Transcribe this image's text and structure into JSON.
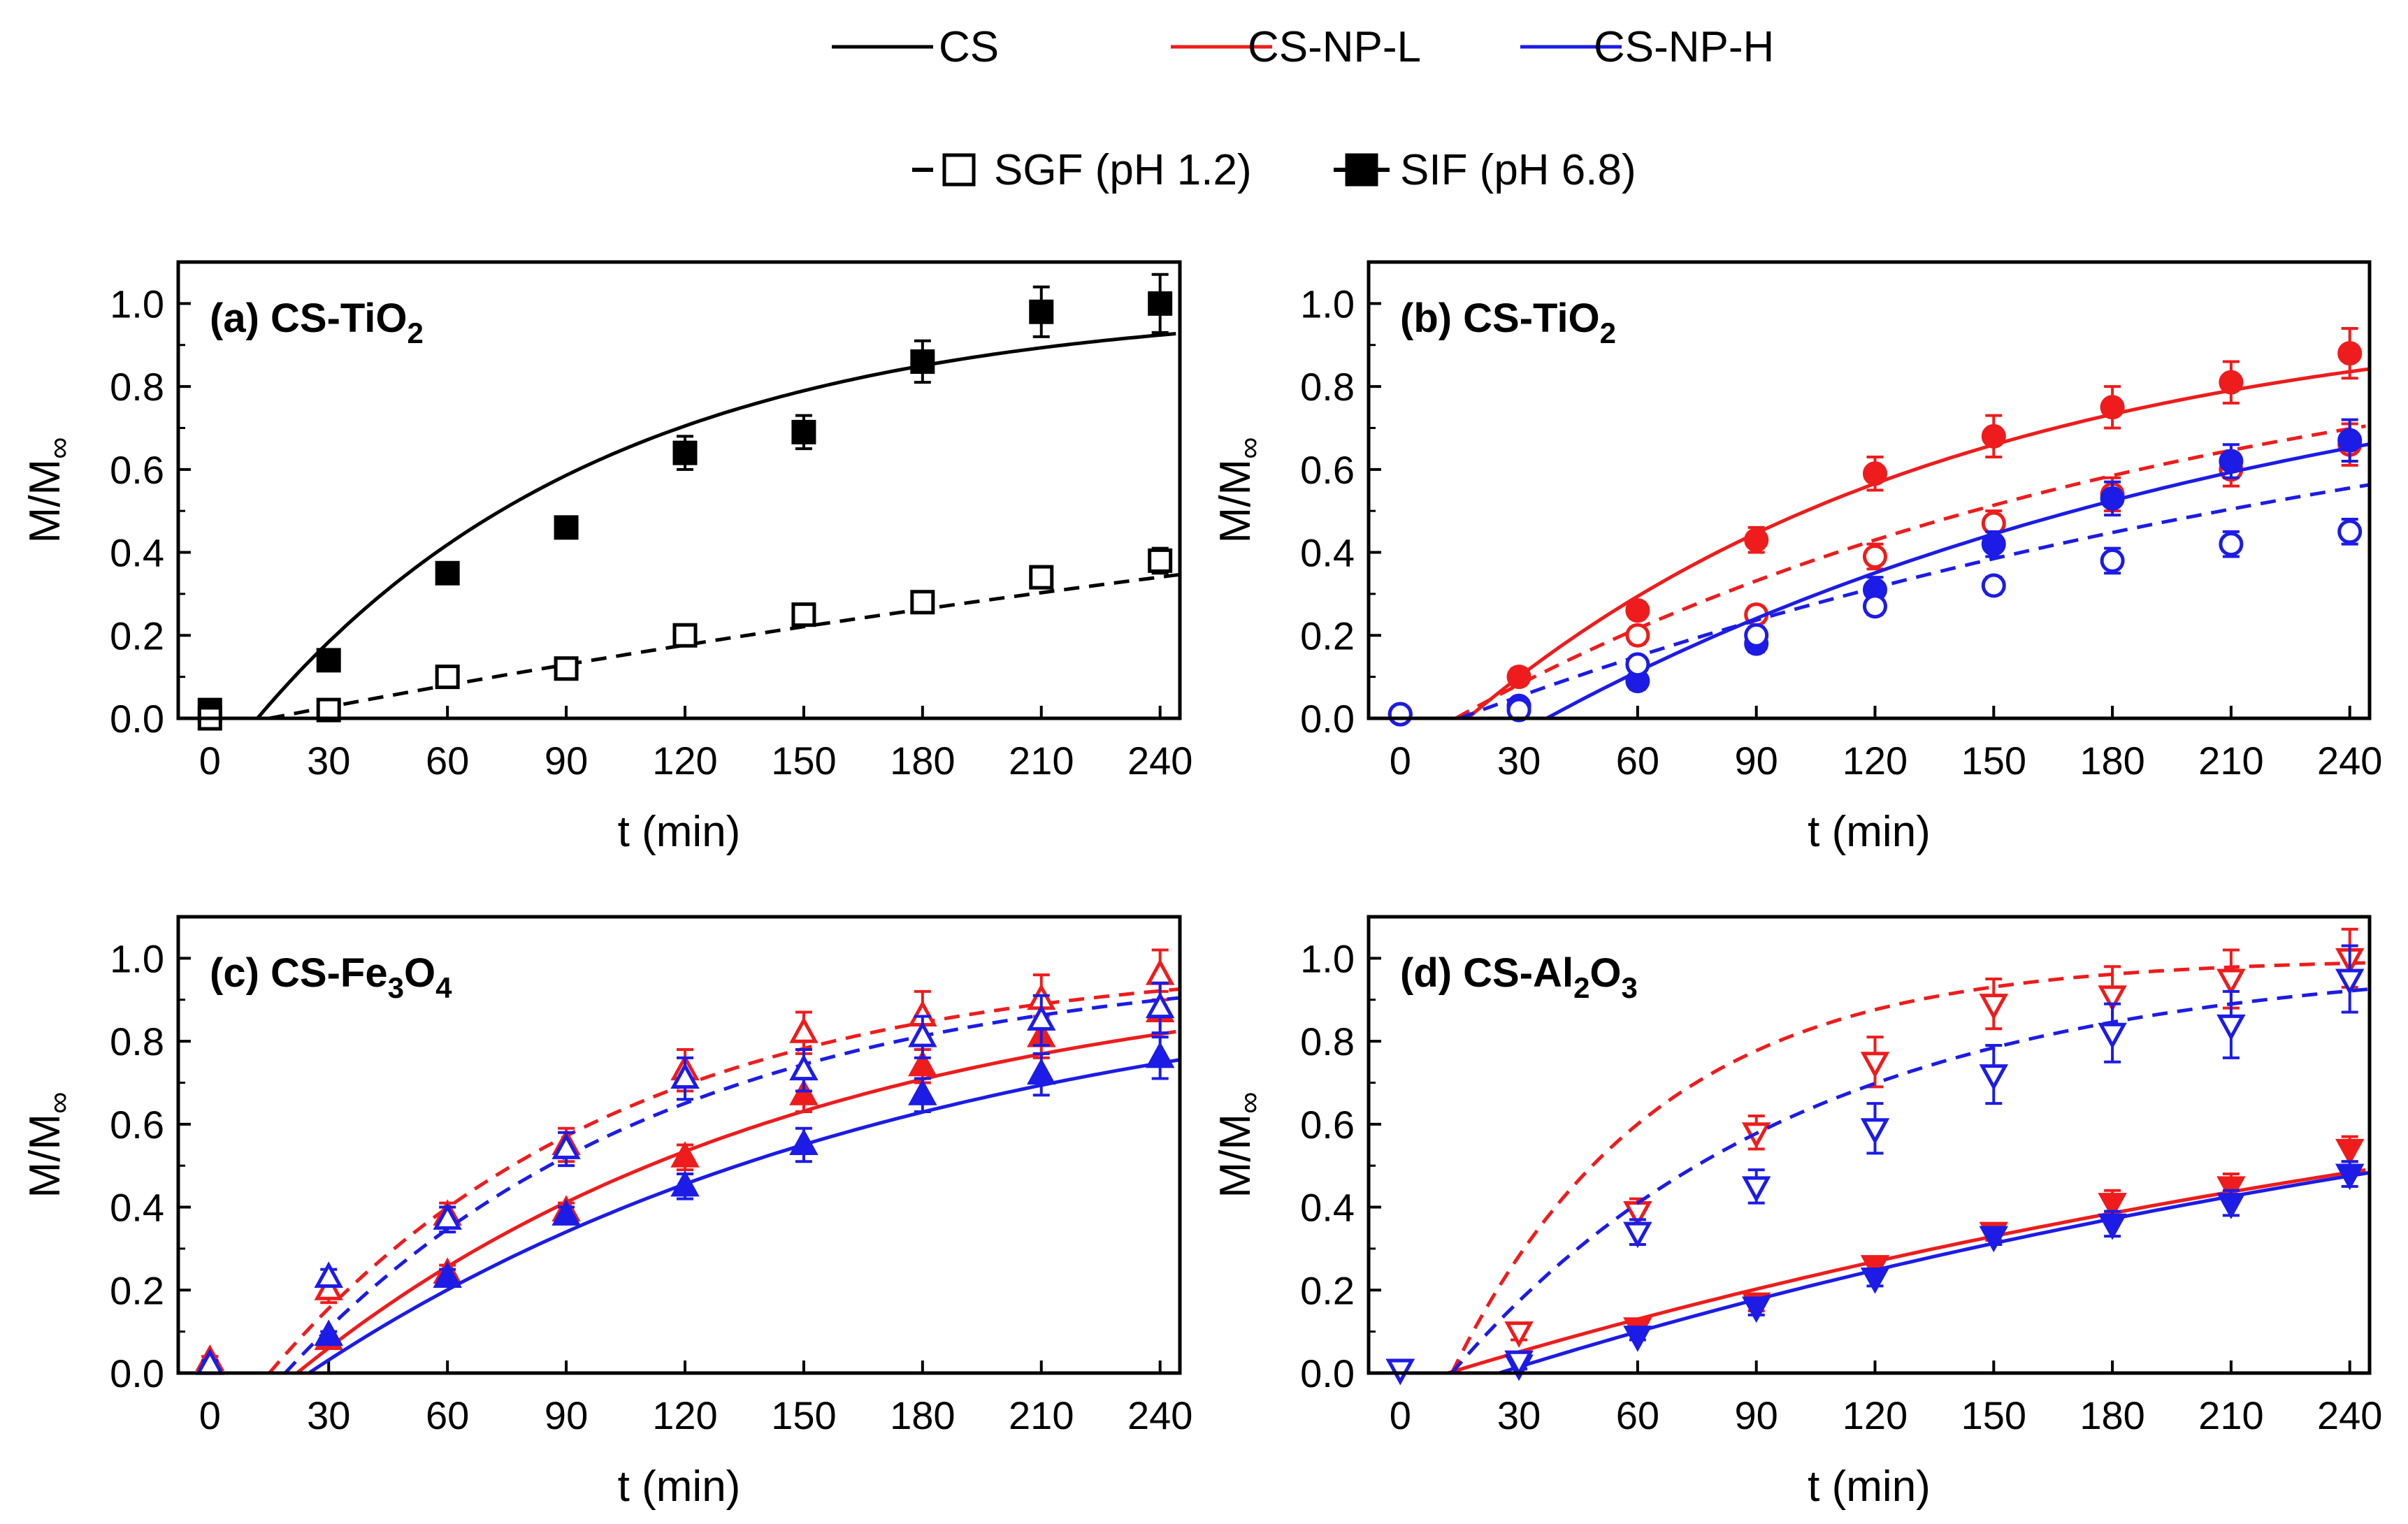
{
  "legend": {
    "materials": [
      {
        "label": "CS",
        "color": "#000000"
      },
      {
        "label": "CS-NP-L",
        "color": "#ee1c1c"
      },
      {
        "label": "CS-NP-H",
        "color": "#1c1ce6"
      }
    ],
    "media": [
      {
        "label": "SGF (pH 1.2)",
        "style": "dashed-open-square"
      },
      {
        "label": "SIF (pH 6.8)",
        "style": "solid-filled-square"
      }
    ]
  },
  "chart_data": [
    {
      "id": "a",
      "type": "scatter",
      "title": "(a) CS-TiO",
      "title_sub": "2",
      "xlabel": "t (min)",
      "ylabel_main": "M/M",
      "ylabel_sub": "∞",
      "xlim": [
        -8,
        245
      ],
      "ylim": [
        0,
        1.1
      ],
      "xticks": [
        0,
        30,
        60,
        90,
        120,
        150,
        180,
        210,
        240
      ],
      "yticks": [
        0.0,
        0.2,
        0.4,
        0.6,
        0.8,
        1.0
      ],
      "ytick_labels": [
        "0.0",
        "0.2",
        "0.4",
        "0.6",
        "0.8",
        "1.0"
      ],
      "x": [
        0,
        30,
        60,
        90,
        120,
        150,
        180,
        210,
        240
      ],
      "series": [
        {
          "name": "CS SIF (pH 6.8)",
          "color": "#000000",
          "marker": "square",
          "filled": true,
          "dashed": false,
          "values": [
            0.02,
            0.14,
            0.35,
            0.46,
            0.64,
            0.69,
            0.86,
            0.98,
            1.0
          ],
          "errors": [
            0.01,
            0.02,
            0.02,
            0.02,
            0.04,
            0.04,
            0.05,
            0.06,
            0.07
          ],
          "fit": {
            "k": 0.0113,
            "t0": 12
          }
        },
        {
          "name": "CS SGF (pH 1.2)",
          "color": "#000000",
          "marker": "square",
          "filled": false,
          "dashed": true,
          "values": [
            0.0,
            0.02,
            0.1,
            0.12,
            0.2,
            0.25,
            0.28,
            0.34,
            0.38
          ],
          "errors": [
            0.01,
            0.01,
            0.01,
            0.01,
            0.01,
            0.01,
            0.02,
            0.02,
            0.03
          ],
          "fit": {
            "k": 0.00185,
            "t0": 15
          }
        }
      ]
    },
    {
      "id": "b",
      "type": "scatter",
      "title": "(b) CS-TiO",
      "title_sub": "2",
      "xlabel": "t (min)",
      "ylabel_main": "M/M",
      "ylabel_sub": "∞",
      "xlim": [
        -8,
        245
      ],
      "ylim": [
        0,
        1.1
      ],
      "xticks": [
        0,
        30,
        60,
        90,
        120,
        150,
        180,
        210,
        240
      ],
      "yticks": [
        0.0,
        0.2,
        0.4,
        0.6,
        0.8,
        1.0
      ],
      "ytick_labels": [
        "0.0",
        "0.2",
        "0.4",
        "0.6",
        "0.8",
        "1.0"
      ],
      "x": [
        0,
        30,
        60,
        90,
        120,
        150,
        180,
        210,
        240
      ],
      "series": [
        {
          "name": "CS-NP-L SIF (pH 6.8)",
          "color": "#ee1c1c",
          "marker": "circle",
          "filled": true,
          "dashed": false,
          "values": [
            0.01,
            0.1,
            0.26,
            0.43,
            0.59,
            0.68,
            0.75,
            0.81,
            0.88
          ],
          "errors": [
            0.01,
            0.02,
            0.02,
            0.03,
            0.04,
            0.05,
            0.05,
            0.05,
            0.06
          ],
          "fit": {
            "k": 0.0081,
            "t0": 17
          }
        },
        {
          "name": "CS-NP-L SGF (pH 1.2)",
          "color": "#ee1c1c",
          "marker": "circle",
          "filled": false,
          "dashed": true,
          "values": [
            0.01,
            0.03,
            0.2,
            0.25,
            0.39,
            0.47,
            0.54,
            0.6,
            0.66
          ],
          "errors": [
            0.01,
            0.01,
            0.02,
            0.02,
            0.03,
            0.03,
            0.04,
            0.04,
            0.05
          ],
          "fit": {
            "k": 0.0053,
            "t0": 14
          }
        },
        {
          "name": "CS-NP-H SIF (pH 6.8)",
          "color": "#1c1ce6",
          "marker": "circle",
          "filled": true,
          "dashed": false,
          "values": [
            0.01,
            0.03,
            0.09,
            0.18,
            0.31,
            0.42,
            0.53,
            0.62,
            0.67
          ],
          "errors": [
            0.01,
            0.01,
            0.02,
            0.02,
            0.03,
            0.03,
            0.04,
            0.04,
            0.05
          ],
          "fit": {
            "k": 0.0052,
            "t0": 37
          }
        },
        {
          "name": "CS-NP-H SGF (pH 1.2)",
          "color": "#1c1ce6",
          "marker": "circle",
          "filled": false,
          "dashed": true,
          "values": [
            0.01,
            0.02,
            0.13,
            0.2,
            0.27,
            0.32,
            0.38,
            0.42,
            0.45
          ],
          "errors": [
            0.01,
            0.01,
            0.01,
            0.02,
            0.02,
            0.02,
            0.03,
            0.03,
            0.03
          ],
          "fit": {
            "k": 0.0036,
            "t0": 15
          }
        }
      ]
    },
    {
      "id": "c",
      "type": "scatter",
      "title": "(c) CS-Fe",
      "title_sub": "3",
      "title_tail": "O",
      "title_sub2": "4",
      "xlabel": "t (min)",
      "ylabel_main": "M/M",
      "ylabel_sub": "∞",
      "xlim": [
        -8,
        245
      ],
      "ylim": [
        0,
        1.1
      ],
      "xticks": [
        0,
        30,
        60,
        90,
        120,
        150,
        180,
        210,
        240
      ],
      "yticks": [
        0.0,
        0.2,
        0.4,
        0.6,
        0.8,
        1.0
      ],
      "ytick_labels": [
        "0.0",
        "0.2",
        "0.4",
        "0.6",
        "0.8",
        "1.0"
      ],
      "x": [
        0,
        30,
        60,
        90,
        120,
        150,
        180,
        210,
        240
      ],
      "series": [
        {
          "name": "CS-NP-L SIF (pH 6.8)",
          "color": "#ee1c1c",
          "marker": "triangle-up",
          "filled": true,
          "dashed": false,
          "values": [
            0.03,
            0.08,
            0.24,
            0.39,
            0.52,
            0.67,
            0.74,
            0.81,
            0.87
          ],
          "errors": [
            0.01,
            0.01,
            0.02,
            0.02,
            0.03,
            0.04,
            0.04,
            0.05,
            0.05
          ],
          "fit": {
            "k": 0.0078,
            "t0": 22
          }
        },
        {
          "name": "CS-NP-L SGF (pH 1.2)",
          "color": "#ee1c1c",
          "marker": "triangle-up",
          "filled": false,
          "dashed": true,
          "values": [
            0.03,
            0.2,
            0.38,
            0.55,
            0.73,
            0.82,
            0.86,
            0.9,
            0.96
          ],
          "errors": [
            0.01,
            0.03,
            0.03,
            0.04,
            0.05,
            0.05,
            0.06,
            0.06,
            0.06
          ],
          "fit": {
            "k": 0.0113,
            "t0": 15
          }
        },
        {
          "name": "CS-NP-H SIF (pH 6.8)",
          "color": "#1c1ce6",
          "marker": "triangle-up",
          "filled": true,
          "dashed": false,
          "values": [
            0.02,
            0.09,
            0.23,
            0.38,
            0.45,
            0.55,
            0.67,
            0.72,
            0.76
          ],
          "errors": [
            0.01,
            0.01,
            0.02,
            0.02,
            0.03,
            0.04,
            0.04,
            0.05,
            0.05
          ],
          "fit": {
            "k": 0.0064,
            "t0": 25
          }
        },
        {
          "name": "CS-NP-H SGF (pH 1.2)",
          "color": "#1c1ce6",
          "marker": "triangle-up",
          "filled": false,
          "dashed": true,
          "values": [
            0.02,
            0.23,
            0.37,
            0.54,
            0.71,
            0.73,
            0.81,
            0.85,
            0.88
          ],
          "errors": [
            0.01,
            0.02,
            0.03,
            0.04,
            0.05,
            0.05,
            0.05,
            0.06,
            0.06
          ],
          "fit": {
            "k": 0.0104,
            "t0": 19
          }
        }
      ]
    },
    {
      "id": "d",
      "type": "scatter",
      "title": "(d) CS-Al",
      "title_sub": "2",
      "title_tail": "O",
      "title_sub2": "3",
      "xlabel": "t (min)",
      "ylabel_main": "M/M",
      "ylabel_sub": "∞",
      "xlim": [
        -8,
        245
      ],
      "ylim": [
        0,
        1.1
      ],
      "xticks": [
        0,
        30,
        60,
        90,
        120,
        150,
        180,
        210,
        240
      ],
      "yticks": [
        0.0,
        0.2,
        0.4,
        0.6,
        0.8,
        1.0
      ],
      "ytick_labels": [
        "0.0",
        "0.2",
        "0.4",
        "0.6",
        "0.8",
        "1.0"
      ],
      "x": [
        0,
        30,
        60,
        90,
        120,
        150,
        180,
        210,
        240
      ],
      "series": [
        {
          "name": "CS-NP-L SIF (pH 6.8)",
          "color": "#ee1c1c",
          "marker": "triangle-down",
          "filled": true,
          "dashed": false,
          "values": [
            0.01,
            0.03,
            0.11,
            0.17,
            0.26,
            0.34,
            0.41,
            0.45,
            0.54
          ],
          "errors": [
            0.01,
            0.01,
            0.01,
            0.02,
            0.02,
            0.02,
            0.03,
            0.03,
            0.03
          ],
          "fit": {
            "k": 0.0029,
            "t0": 12
          }
        },
        {
          "name": "CS-NP-L SGF (pH 1.2)",
          "color": "#ee1c1c",
          "marker": "triangle-down",
          "filled": false,
          "dashed": true,
          "values": [
            0.01,
            0.1,
            0.39,
            0.58,
            0.75,
            0.89,
            0.91,
            0.95,
            1.0
          ],
          "errors": [
            0.01,
            0.02,
            0.03,
            0.04,
            0.06,
            0.06,
            0.07,
            0.07,
            0.07
          ],
          "fit": {
            "k": 0.0195,
            "t0": 13
          }
        },
        {
          "name": "CS-NP-H SIF (pH 6.8)",
          "color": "#1c1ce6",
          "marker": "triangle-down",
          "filled": true,
          "dashed": false,
          "values": [
            0.01,
            0.02,
            0.09,
            0.16,
            0.23,
            0.33,
            0.36,
            0.41,
            0.48
          ],
          "errors": [
            0.01,
            0.01,
            0.01,
            0.02,
            0.02,
            0.02,
            0.03,
            0.03,
            0.03
          ],
          "fit": {
            "k": 0.003,
            "t0": 25
          }
        },
        {
          "name": "CS-NP-H SGF (pH 1.2)",
          "color": "#1c1ce6",
          "marker": "triangle-down",
          "filled": false,
          "dashed": true,
          "values": [
            0.01,
            0.03,
            0.34,
            0.45,
            0.59,
            0.72,
            0.82,
            0.84,
            0.95
          ],
          "errors": [
            0.01,
            0.01,
            0.03,
            0.04,
            0.06,
            0.07,
            0.07,
            0.08,
            0.08
          ],
          "fit": {
            "k": 0.0112,
            "t0": 13
          }
        }
      ]
    }
  ]
}
